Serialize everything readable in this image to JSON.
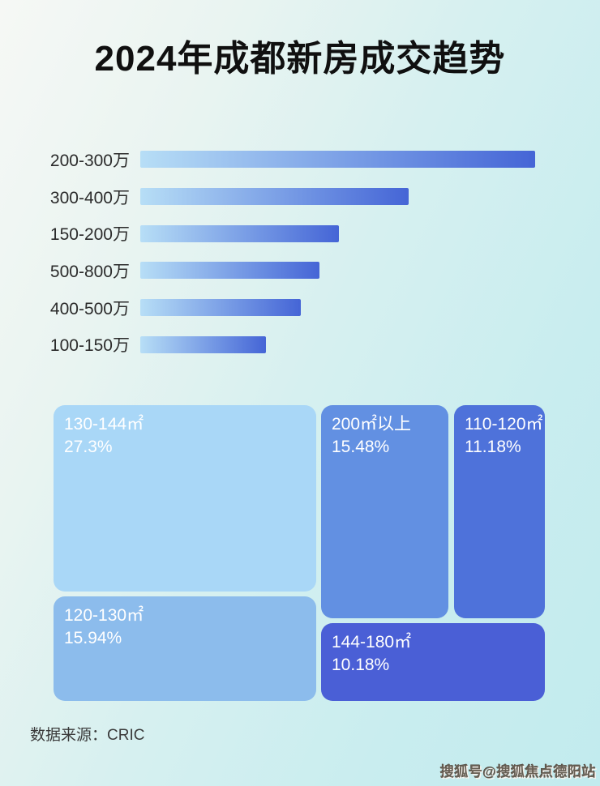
{
  "title": "2024年成都新房成交趋势",
  "footer": {
    "source_label": "数据来源：CRIC"
  },
  "watermark": "搜狐号@搜狐焦点德阳站",
  "colors": {
    "title_text": "#101010",
    "bar_gradient_start": "#b7def6",
    "bar_gradient_end": "#4565d6",
    "bar_label_text": "#2b2b2b",
    "treemap_text": "#ffffff",
    "footer_text": "#3a3a3a",
    "background_start": "#f6f8f5",
    "background_end": "#c2ebee"
  },
  "chart_data": [
    {
      "type": "bar",
      "orientation": "horizontal",
      "categories": [
        "200-300万",
        "300-400万",
        "150-200万",
        "500-800万",
        "400-500万",
        "100-150万"
      ],
      "values_relative_pct": [
        100,
        68,
        50.3,
        45.4,
        40.7,
        31.8
      ],
      "axis_labels_shown": false,
      "legend": "none",
      "grid": false
    },
    {
      "type": "treemap",
      "items": [
        {
          "label": "130-144㎡",
          "value_pct": "27.3%",
          "color": "#a9d7f7"
        },
        {
          "label": "120-130㎡",
          "value_pct": "15.94%",
          "color": "#8cbcec"
        },
        {
          "label": "200㎡以上",
          "value_pct": "15.48%",
          "color": "#6290e2"
        },
        {
          "label": "110-120㎡",
          "value_pct": "11.18%",
          "color": "#4e72da"
        },
        {
          "label": "144-180㎡",
          "value_pct": "10.18%",
          "color": "#4a5fd6"
        }
      ]
    }
  ]
}
